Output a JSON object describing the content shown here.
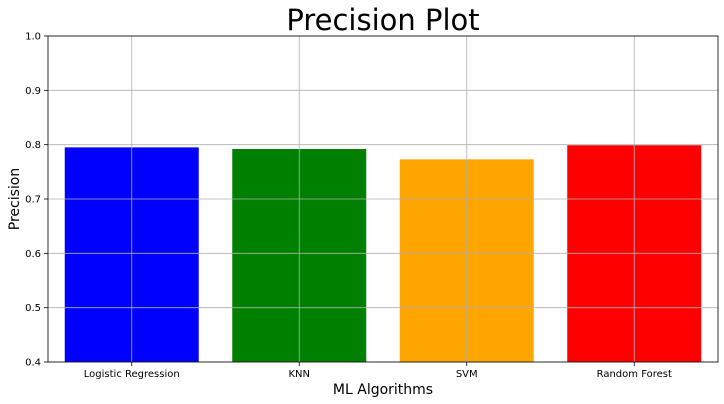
{
  "chart_data": {
    "type": "bar",
    "title": "Precision Plot",
    "xlabel": "ML Algorithms",
    "ylabel": "Precision",
    "categories": [
      "Logistic Regression",
      "KNN",
      "SVM",
      "Random Forest"
    ],
    "values": [
      0.795,
      0.792,
      0.773,
      0.799
    ],
    "colors": [
      "#0000ff",
      "#008000",
      "#ffa500",
      "#ff0000"
    ],
    "ylim": [
      0.4,
      1.0
    ],
    "yticks": [
      "0.4",
      "0.5",
      "0.6",
      "0.7",
      "0.8",
      "0.9",
      "1.0"
    ],
    "grid": true
  }
}
